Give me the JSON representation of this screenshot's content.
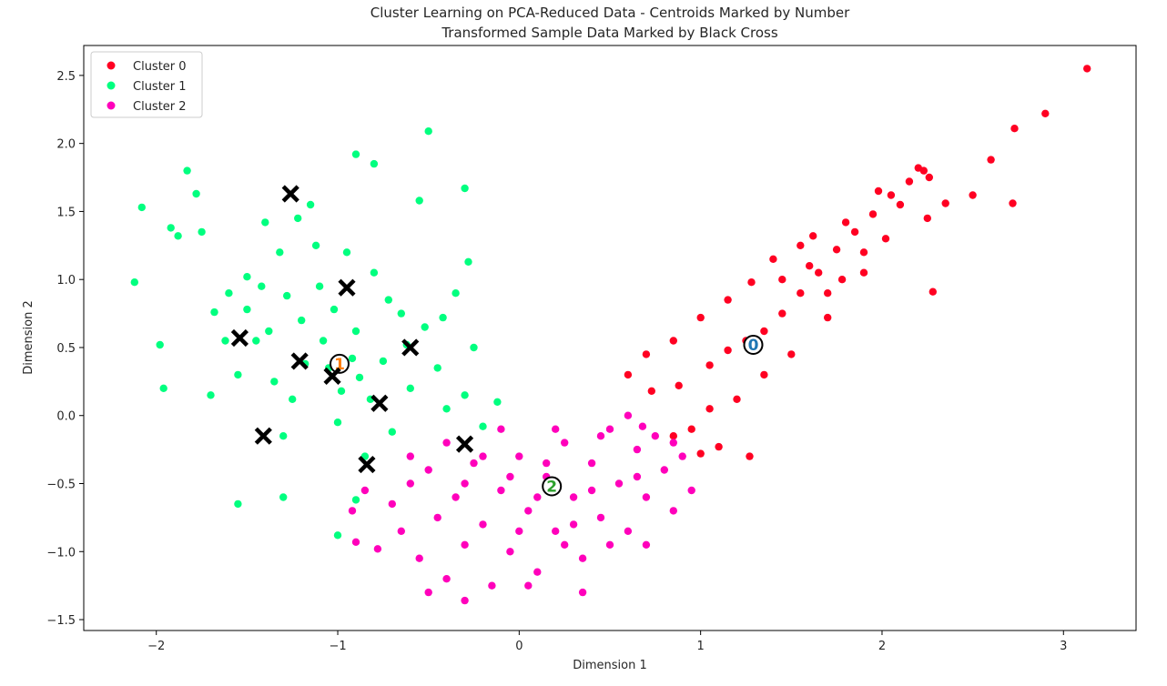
{
  "chart_data": {
    "type": "scatter",
    "title": "Cluster Learning on PCA-Reduced Data - Centroids Marked by Number",
    "subtitle": "Transformed Sample Data Marked by Black Cross",
    "xlabel": "Dimension 1",
    "ylabel": "Dimension 2",
    "xlim": [
      -2.4,
      3.4
    ],
    "ylim": [
      -1.58,
      2.72
    ],
    "xticks": [
      -2,
      -1,
      0,
      1,
      2,
      3
    ],
    "xtick_labels": [
      "−2",
      "−1",
      "0",
      "1",
      "2",
      "3"
    ],
    "yticks": [
      -1.5,
      -1.0,
      -0.5,
      0.0,
      0.5,
      1.0,
      1.5,
      2.0,
      2.5
    ],
    "ytick_labels": [
      "−1.5",
      "−1.0",
      "−0.5",
      "0.0",
      "0.5",
      "1.0",
      "1.5",
      "2.0",
      "2.5"
    ],
    "grid": false,
    "legend_position": "top-left",
    "series": [
      {
        "name": "Cluster 0",
        "color": "#ff0022",
        "points": [
          [
            0.73,
            0.18
          ],
          [
            0.88,
            0.22
          ],
          [
            1.05,
            0.37
          ],
          [
            1.15,
            0.48
          ],
          [
            1.25,
            0.55
          ],
          [
            1.35,
            0.62
          ],
          [
            1.45,
            0.75
          ],
          [
            1.55,
            0.9
          ],
          [
            1.65,
            1.05
          ],
          [
            1.75,
            1.22
          ],
          [
            1.85,
            1.35
          ],
          [
            1.95,
            1.48
          ],
          [
            2.05,
            1.62
          ],
          [
            2.15,
            1.72
          ],
          [
            2.2,
            1.82
          ],
          [
            2.23,
            1.8
          ],
          [
            2.26,
            1.75
          ],
          [
            2.35,
            1.56
          ],
          [
            2.5,
            1.62
          ],
          [
            2.6,
            1.88
          ],
          [
            2.73,
            2.11
          ],
          [
            2.9,
            2.22
          ],
          [
            3.13,
            2.55
          ],
          [
            2.72,
            1.56
          ],
          [
            2.28,
            0.91
          ],
          [
            1.9,
            1.05
          ],
          [
            1.7,
            0.72
          ],
          [
            1.5,
            0.45
          ],
          [
            1.35,
            0.3
          ],
          [
            1.2,
            0.12
          ],
          [
            1.05,
            0.05
          ],
          [
            0.95,
            -0.1
          ],
          [
            0.85,
            -0.15
          ],
          [
            1.0,
            -0.28
          ],
          [
            1.1,
            -0.23
          ],
          [
            1.27,
            -0.3
          ],
          [
            0.6,
            0.3
          ],
          [
            0.7,
            0.45
          ],
          [
            0.85,
            0.55
          ],
          [
            1.0,
            0.72
          ],
          [
            1.15,
            0.85
          ],
          [
            1.28,
            0.98
          ],
          [
            1.4,
            1.15
          ],
          [
            1.55,
            1.25
          ],
          [
            1.62,
            1.32
          ],
          [
            1.8,
            1.42
          ],
          [
            1.98,
            1.65
          ],
          [
            2.1,
            1.55
          ],
          [
            2.25,
            1.45
          ],
          [
            1.45,
            1.0
          ],
          [
            1.6,
            1.1
          ],
          [
            1.78,
            1.0
          ],
          [
            1.9,
            1.2
          ],
          [
            2.02,
            1.3
          ],
          [
            1.7,
            0.9
          ]
        ]
      },
      {
        "name": "Cluster 1",
        "color": "#00ff7f",
        "points": [
          [
            -2.12,
            0.98
          ],
          [
            -2.08,
            1.53
          ],
          [
            -1.98,
            0.52
          ],
          [
            -1.96,
            0.2
          ],
          [
            -1.92,
            1.38
          ],
          [
            -1.88,
            1.32
          ],
          [
            -1.83,
            1.8
          ],
          [
            -1.78,
            1.63
          ],
          [
            -1.75,
            1.35
          ],
          [
            -1.68,
            0.76
          ],
          [
            -1.6,
            0.9
          ],
          [
            -1.55,
            0.3
          ],
          [
            -1.5,
            1.02
          ],
          [
            -1.45,
            0.55
          ],
          [
            -1.4,
            1.42
          ],
          [
            -1.35,
            0.25
          ],
          [
            -1.3,
            -0.15
          ],
          [
            -1.25,
            0.12
          ],
          [
            -1.2,
            0.7
          ],
          [
            -1.15,
            1.55
          ],
          [
            -1.1,
            0.95
          ],
          [
            -1.05,
            0.35
          ],
          [
            -1.0,
            -0.05
          ],
          [
            -0.95,
            1.2
          ],
          [
            -0.9,
            0.62
          ],
          [
            -0.85,
            -0.3
          ],
          [
            -0.8,
            1.05
          ],
          [
            -0.75,
            0.4
          ],
          [
            -0.7,
            -0.12
          ],
          [
            -0.65,
            0.75
          ],
          [
            -0.6,
            0.2
          ],
          [
            -0.55,
            1.58
          ],
          [
            -0.5,
            2.09
          ],
          [
            -0.45,
            0.35
          ],
          [
            -0.4,
            0.05
          ],
          [
            -0.35,
            0.9
          ],
          [
            -0.3,
            0.15
          ],
          [
            -0.25,
            0.5
          ],
          [
            -0.2,
            -0.08
          ],
          [
            -0.12,
            0.1
          ],
          [
            -0.3,
            1.67
          ],
          [
            -0.28,
            1.13
          ],
          [
            -0.9,
            1.92
          ],
          [
            -0.8,
            1.85
          ],
          [
            -1.55,
            -0.65
          ],
          [
            -1.3,
            -0.6
          ],
          [
            -1.0,
            -0.88
          ],
          [
            -0.9,
            -0.62
          ],
          [
            -1.62,
            0.55
          ],
          [
            -1.7,
            0.15
          ],
          [
            -1.5,
            0.78
          ],
          [
            -1.42,
            0.95
          ],
          [
            -1.32,
            1.2
          ],
          [
            -1.22,
            1.45
          ],
          [
            -1.12,
            1.25
          ],
          [
            -1.02,
            0.78
          ],
          [
            -0.92,
            0.42
          ],
          [
            -0.82,
            0.12
          ],
          [
            -0.72,
            0.85
          ],
          [
            -0.62,
            0.52
          ],
          [
            -0.52,
            0.65
          ],
          [
            -0.42,
            0.72
          ],
          [
            -1.18,
            0.38
          ],
          [
            -1.08,
            0.55
          ],
          [
            -0.98,
            0.18
          ],
          [
            -0.88,
            0.28
          ],
          [
            -1.38,
            0.62
          ],
          [
            -1.28,
            0.88
          ]
        ]
      },
      {
        "name": "Cluster 2",
        "color": "#ff00bb",
        "points": [
          [
            -0.92,
            -0.7
          ],
          [
            -0.9,
            -0.93
          ],
          [
            -0.85,
            -0.55
          ],
          [
            -0.78,
            -0.98
          ],
          [
            -0.7,
            -0.65
          ],
          [
            -0.65,
            -0.85
          ],
          [
            -0.6,
            -0.5
          ],
          [
            -0.55,
            -1.05
          ],
          [
            -0.5,
            -0.4
          ],
          [
            -0.45,
            -0.75
          ],
          [
            -0.4,
            -1.2
          ],
          [
            -0.35,
            -0.6
          ],
          [
            -0.3,
            -0.95
          ],
          [
            -0.3,
            -1.36
          ],
          [
            -0.25,
            -0.35
          ],
          [
            -0.2,
            -0.8
          ],
          [
            -0.15,
            -1.25
          ],
          [
            -0.1,
            -0.55
          ],
          [
            -0.05,
            -1.0
          ],
          [
            0.0,
            -0.3
          ],
          [
            0.05,
            -0.7
          ],
          [
            0.1,
            -1.15
          ],
          [
            0.15,
            -0.45
          ],
          [
            0.2,
            -0.85
          ],
          [
            0.25,
            -0.2
          ],
          [
            0.3,
            -0.6
          ],
          [
            0.35,
            -1.05
          ],
          [
            0.4,
            -0.35
          ],
          [
            0.45,
            -0.75
          ],
          [
            0.5,
            -0.1
          ],
          [
            0.55,
            -0.5
          ],
          [
            0.6,
            -0.85
          ],
          [
            0.65,
            -0.25
          ],
          [
            0.7,
            -0.6
          ],
          [
            0.75,
            -0.15
          ],
          [
            0.8,
            -0.4
          ],
          [
            0.85,
            -0.7
          ],
          [
            0.9,
            -0.3
          ],
          [
            0.95,
            -0.55
          ],
          [
            0.35,
            -1.3
          ],
          [
            -0.5,
            -1.3
          ],
          [
            0.05,
            -1.25
          ],
          [
            -0.2,
            -0.3
          ],
          [
            -0.1,
            -0.1
          ],
          [
            0.2,
            -0.1
          ],
          [
            0.45,
            -0.15
          ],
          [
            0.6,
            0.0
          ],
          [
            0.68,
            -0.08
          ],
          [
            -0.05,
            -0.45
          ],
          [
            0.1,
            -0.6
          ],
          [
            0.3,
            -0.8
          ],
          [
            0.5,
            -0.95
          ],
          [
            0.7,
            -0.95
          ],
          [
            -0.3,
            -0.5
          ],
          [
            -0.6,
            -0.3
          ],
          [
            0.15,
            -0.35
          ],
          [
            0.4,
            -0.55
          ],
          [
            0.65,
            -0.45
          ],
          [
            0.85,
            -0.2
          ],
          [
            -0.4,
            -0.2
          ],
          [
            0.0,
            -0.85
          ],
          [
            0.25,
            -0.95
          ]
        ]
      }
    ],
    "centroids": [
      {
        "label": "0",
        "x": 1.29,
        "y": 0.52,
        "label_color": "#1f77b4"
      },
      {
        "label": "1",
        "x": -0.99,
        "y": 0.38,
        "label_color": "#ff7f0e"
      },
      {
        "label": "2",
        "x": 0.18,
        "y": -0.52,
        "label_color": "#2ca02c"
      }
    ],
    "samples": [
      [
        -1.26,
        1.63
      ],
      [
        -0.95,
        0.94
      ],
      [
        -1.54,
        0.57
      ],
      [
        -1.21,
        0.4
      ],
      [
        -1.03,
        0.29
      ],
      [
        -0.6,
        0.5
      ],
      [
        -0.77,
        0.09
      ],
      [
        -1.41,
        -0.15
      ],
      [
        -0.84,
        -0.36
      ],
      [
        -0.3,
        -0.21
      ]
    ]
  }
}
